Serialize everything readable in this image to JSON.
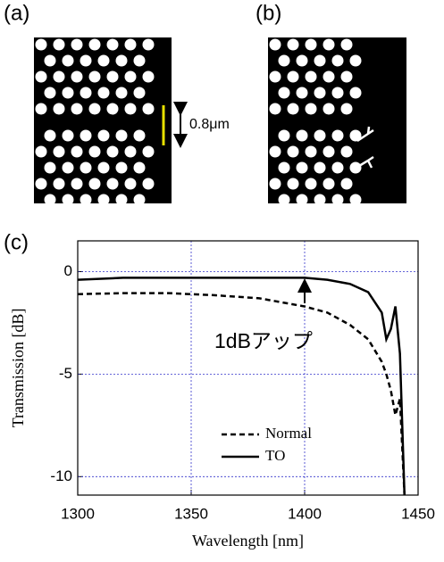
{
  "panels": {
    "a": "(a)",
    "b": "(b)",
    "c": "(c)"
  },
  "scale_label": "0.8μm",
  "chart_data": {
    "type": "line",
    "y_label": "Transmission [dB]",
    "x_label": "Wavelength [nm]",
    "annotation": "1dBアップ",
    "x": [
      1300,
      1320,
      1340,
      1360,
      1380,
      1400,
      1410,
      1420,
      1428,
      1434,
      1436,
      1438,
      1440,
      1442,
      1444
    ],
    "series": [
      {
        "name": "Normal",
        "color": "#000000",
        "dash": true,
        "values": [
          -1.1,
          -1.05,
          -1.05,
          -1.15,
          -1.3,
          -1.7,
          -2.0,
          -2.6,
          -3.3,
          -4.4,
          -5.0,
          -5.8,
          -7.0,
          -6.2,
          -10.9
        ]
      },
      {
        "name": "TO",
        "color": "#000000",
        "dash": false,
        "values": [
          -0.4,
          -0.3,
          -0.3,
          -0.3,
          -0.3,
          -0.3,
          -0.4,
          -0.6,
          -1.0,
          -2.0,
          -3.3,
          -2.8,
          -1.7,
          -4.0,
          -10.9
        ]
      }
    ],
    "xlim": [
      1300,
      1450
    ],
    "xticks": [
      1300,
      1350,
      1400,
      1450
    ],
    "ylim": [
      -10.9,
      1.5
    ],
    "yticks": [
      0,
      -5,
      -10
    ],
    "grid": true,
    "grid_color": "#3333cc"
  }
}
